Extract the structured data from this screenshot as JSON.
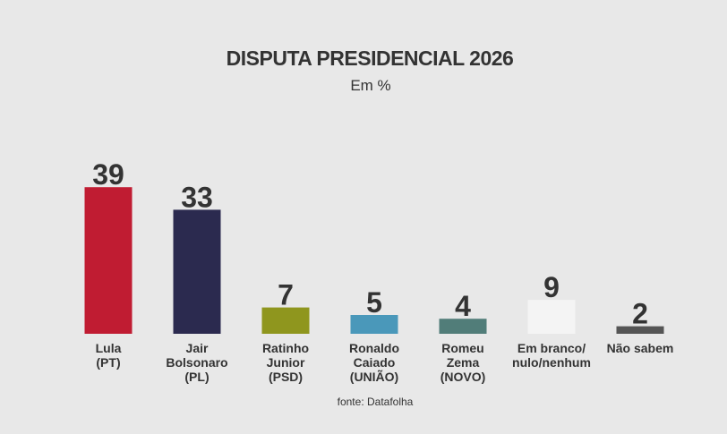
{
  "header": {
    "title": "DISPUTA PRESIDENCIAL 2026",
    "subtitle": "Em %"
  },
  "source": "fonte: Datafolha",
  "chart_data": {
    "type": "bar",
    "title": "DISPUTA PRESIDENCIAL 2026",
    "subtitle": "Em %",
    "xlabel": "",
    "ylabel": "",
    "ylim": [
      0,
      40
    ],
    "grid": false,
    "legend": "none",
    "categories": [
      [
        "Lula",
        "(PT)"
      ],
      [
        "Jair",
        "Bolsonaro",
        "(PL)"
      ],
      [
        "Ratinho",
        "Junior",
        "(PSD)"
      ],
      [
        "Ronaldo",
        "Caiado",
        "(UNIÃO)"
      ],
      [
        "Romeu",
        "Zema",
        "(NOVO)"
      ],
      [
        "Em branco/",
        "nulo/nenhum"
      ],
      [
        "Não sabem"
      ]
    ],
    "values": [
      39,
      33,
      7,
      5,
      4,
      9,
      2
    ],
    "colors": [
      "#c01c32",
      "#2b2a4f",
      "#8f961e",
      "#4a98ba",
      "#517d79",
      "#f4f4f4",
      "#555555"
    ]
  }
}
